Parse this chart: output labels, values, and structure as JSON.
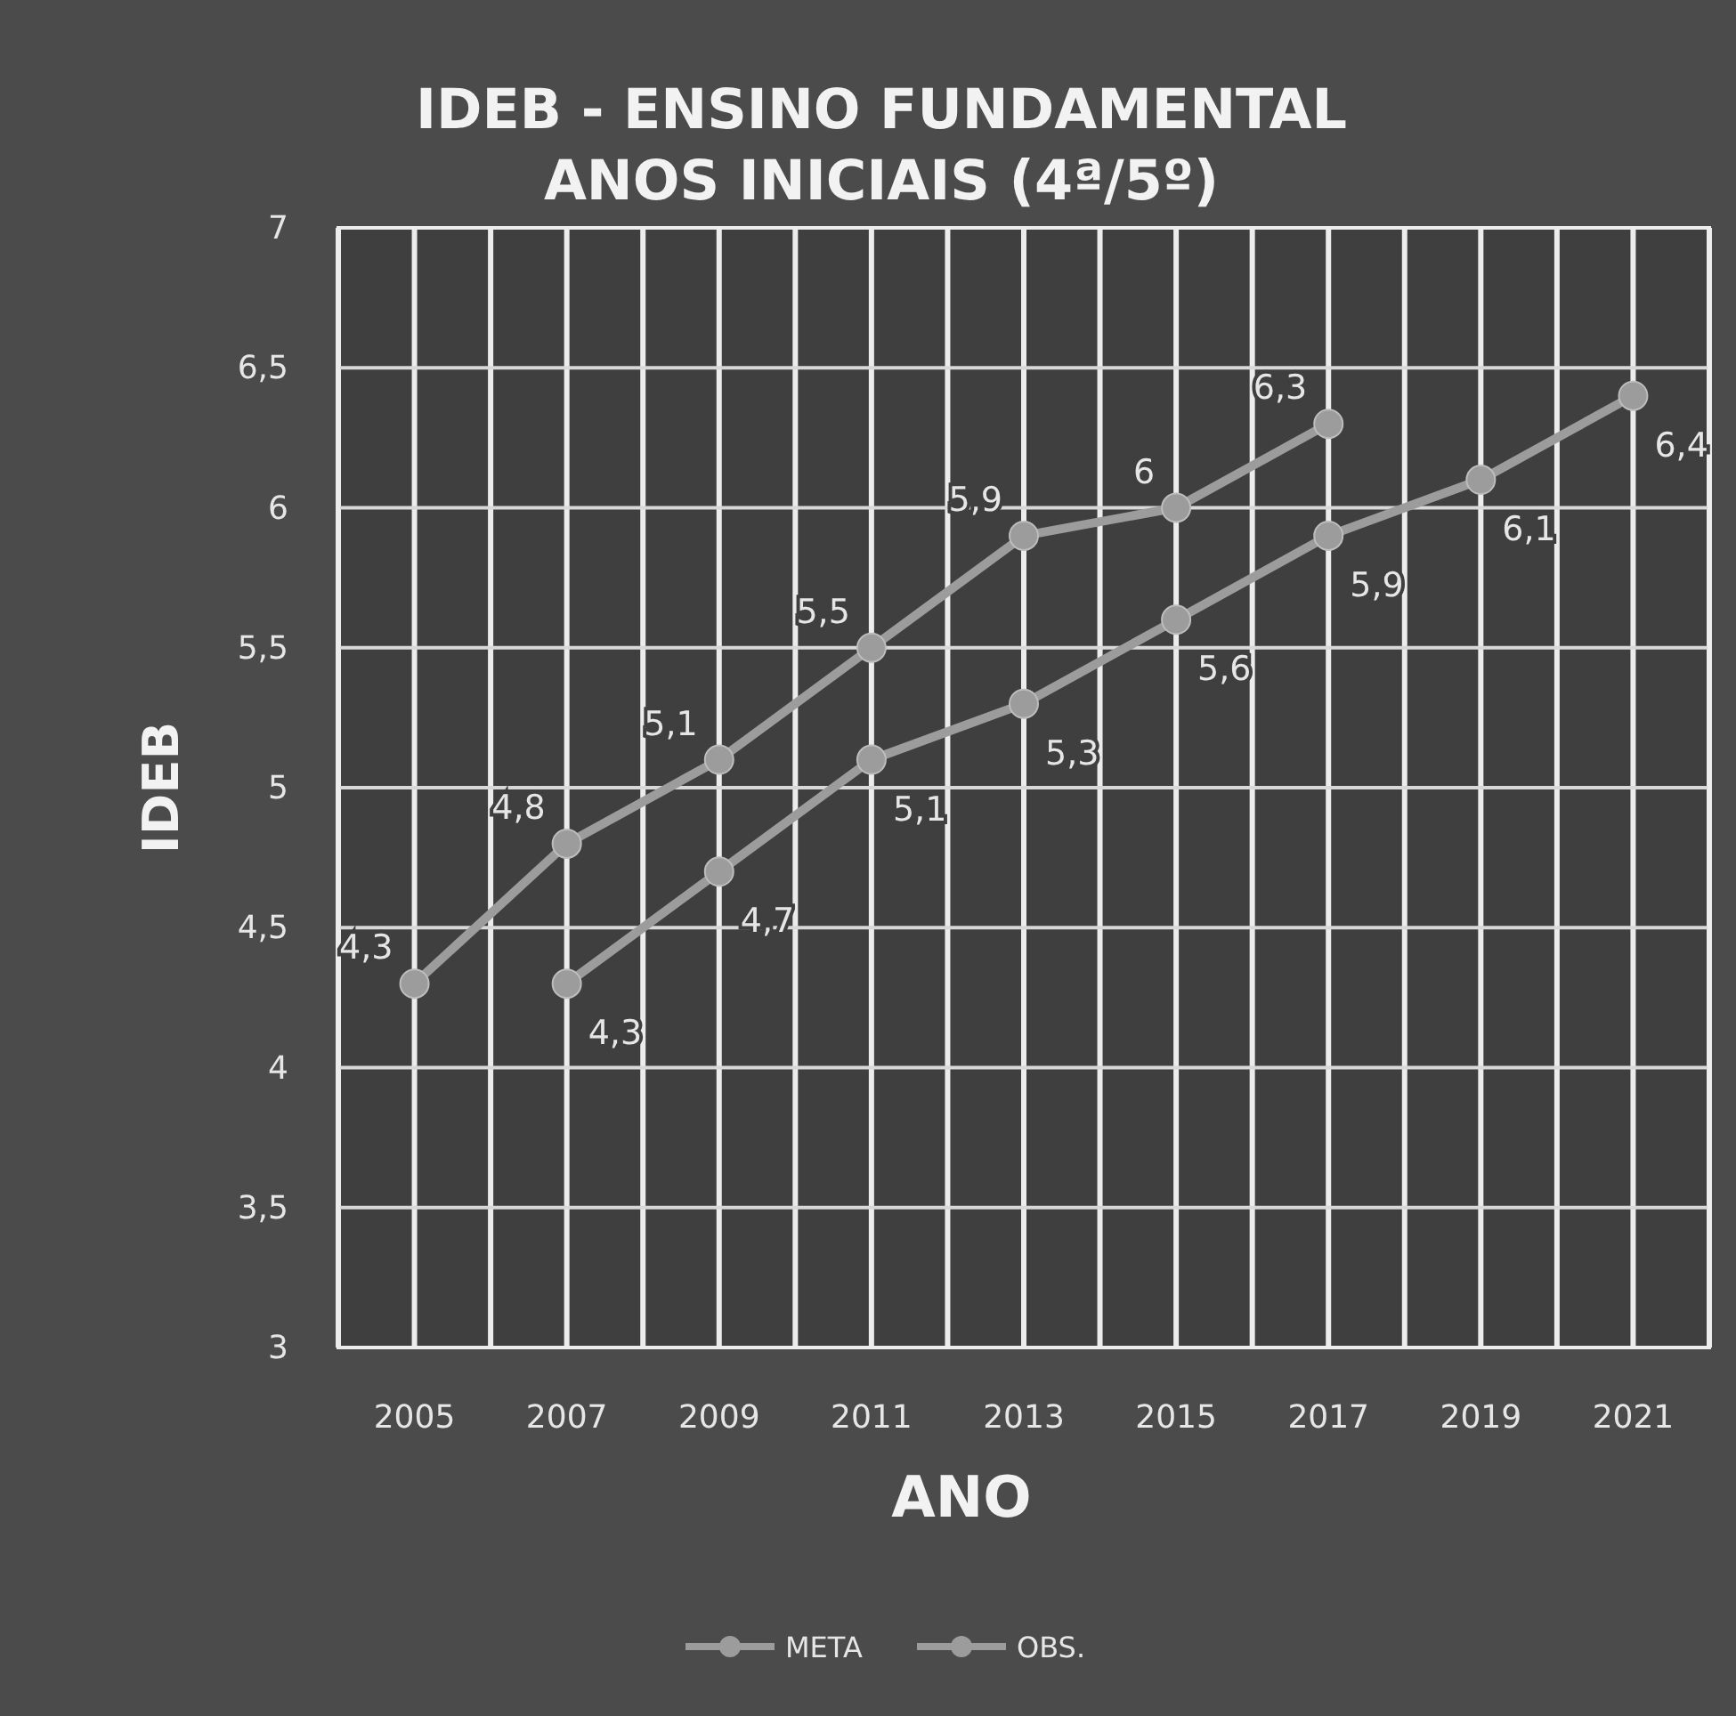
{
  "chart_data": {
    "type": "line",
    "title": "IDEB - ENSINO FUNDAMENTAL\nANOS INICIAIS (4ª/5º)",
    "xlabel": "ANO",
    "ylabel": "IDEB",
    "series": [
      {
        "name": "META",
        "color": "#9c9c9c",
        "x": [
          2007,
          2009,
          2011,
          2013,
          2015,
          2017,
          2019,
          2021
        ],
        "values": [
          4.3,
          4.7,
          5.1,
          5.3,
          5.6,
          5.9,
          6.1,
          6.4
        ],
        "value_labels": [
          "4,3",
          "4,7",
          "5,1",
          "5,3",
          "5,6",
          "5,9",
          "6,1",
          "6,4"
        ]
      },
      {
        "name": "OBS.",
        "color": "#9c9c9c",
        "x": [
          2005,
          2007,
          2009,
          2011,
          2013,
          2015,
          2017
        ],
        "values": [
          4.3,
          4.8,
          5.1,
          5.5,
          5.9,
          6,
          6.3
        ],
        "value_labels": [
          "4,3",
          "4,8",
          "5,1",
          "5,5",
          "5,9",
          "6",
          "6,3"
        ]
      }
    ],
    "xlim": [
      2004,
      2022
    ],
    "xticks": [
      {
        "value": 2004,
        "label": null
      },
      2005,
      {
        "value": 2006,
        "label": null
      },
      2007,
      {
        "value": 2008,
        "label": null
      },
      2009,
      {
        "value": 2010,
        "label": null
      },
      2011,
      {
        "value": 2012,
        "label": null
      },
      2013,
      {
        "value": 2014,
        "label": null
      },
      2015,
      {
        "value": 2016,
        "label": null
      },
      2017,
      {
        "value": 2018,
        "label": null
      },
      2019,
      {
        "value": 2020,
        "label": null
      },
      2021,
      {
        "value": 2022,
        "label": null
      }
    ],
    "ylim": [
      3,
      7
    ],
    "yticks": [
      3,
      {
        "value": 3.5,
        "label": "3,5"
      },
      4,
      {
        "value": 4.5,
        "label": "4,5"
      },
      5,
      {
        "value": 5.5,
        "label": "5,5"
      },
      6,
      {
        "value": 6.5,
        "label": "6,5"
      },
      7
    ],
    "grid": true,
    "legend": "bottom",
    "marker": "circle",
    "line_style": "solid"
  }
}
